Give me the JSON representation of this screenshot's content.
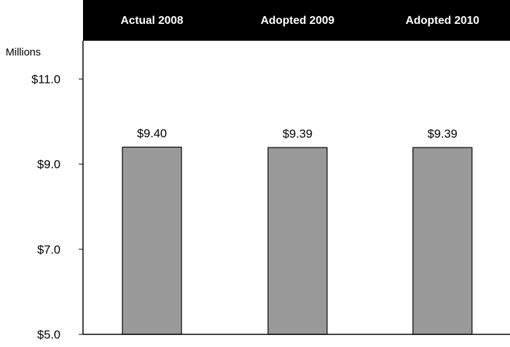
{
  "chart_data": {
    "type": "bar",
    "categories": [
      "Actual 2008",
      "Adopted 2009",
      "Adopted 2010"
    ],
    "values": [
      9.4,
      9.39,
      9.39
    ],
    "data_labels": [
      "$9.40",
      "$9.39",
      "$9.39"
    ],
    "unit_label": "Millions",
    "yticks": [
      5.0,
      7.0,
      9.0,
      11.0
    ],
    "ytick_labels": [
      "$5.0",
      "$7.0",
      "$9.0",
      "$11.0"
    ],
    "ylim": [
      5.0,
      11.9
    ],
    "grid": false,
    "legend": "none",
    "title": "",
    "xlabel": "",
    "ylabel": "",
    "colors": {
      "bar_fill": "#999999",
      "bar_stroke": "#000000",
      "header_band": "#000000",
      "header_text": "#ffffff",
      "axis": "#000000",
      "text": "#000000"
    }
  }
}
